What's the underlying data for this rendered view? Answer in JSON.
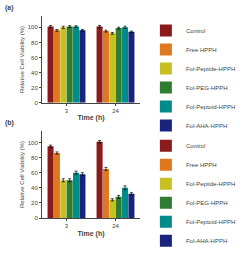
{
  "chart_data": [
    {
      "type": "bar",
      "title": "(a)",
      "categories": [
        "3",
        "24"
      ],
      "series": [
        {
          "name": "Control",
          "color": "#8B1A1A",
          "values": [
            101,
            101
          ],
          "errors": [
            1.5,
            1.5
          ]
        },
        {
          "name": "Free HPPH",
          "color": "#E07820",
          "values": [
            96,
            95
          ],
          "errors": [
            1.2,
            1.2
          ]
        },
        {
          "name": "Fol-Peptide-HPPH",
          "color": "#C8C020",
          "values": [
            100,
            92
          ],
          "errors": [
            1.5,
            1.2
          ]
        },
        {
          "name": "Fol-PEG-HPPH",
          "color": "#2E7D32",
          "values": [
            101,
            99
          ],
          "errors": [
            1.2,
            1.2
          ]
        },
        {
          "name": "Fol-Peptoid-HPPH",
          "color": "#008B8B",
          "values": [
            101,
            100
          ],
          "errors": [
            1.0,
            1.5
          ]
        },
        {
          "name": "Fol-AHA-HPPH",
          "color": "#1A237E",
          "values": [
            96,
            94
          ],
          "errors": [
            1.2,
            1.0
          ]
        }
      ],
      "xlabel": "Time (h)",
      "ylabel": "Relative Cell Viability (%)",
      "ylim": [
        0,
        115
      ],
      "yticks": [
        0,
        20,
        40,
        60,
        80,
        100
      ],
      "grid": false,
      "legend": "upper right"
    },
    {
      "type": "bar",
      "title": "(b)",
      "categories": [
        "3",
        "24"
      ],
      "series": [
        {
          "name": "Control",
          "color": "#8B1A1A",
          "values": [
            95,
            101
          ],
          "errors": [
            1.5,
            1.5
          ]
        },
        {
          "name": "Free HPPH",
          "color": "#E07820",
          "values": [
            86,
            65
          ],
          "errors": [
            1.5,
            2.0
          ]
        },
        {
          "name": "Fol-Peptide-HPPH",
          "color": "#C8C020",
          "values": [
            50,
            24
          ],
          "errors": [
            2.0,
            1.5
          ]
        },
        {
          "name": "Fol-PEG-HPPH",
          "color": "#2E7D32",
          "values": [
            50,
            28
          ],
          "errors": [
            2.0,
            2.0
          ]
        },
        {
          "name": "Fol-Peptoid-HPPH",
          "color": "#008B8B",
          "values": [
            60,
            40
          ],
          "errors": [
            2.0,
            2.5
          ]
        },
        {
          "name": "Fol-AHA-HPPH",
          "color": "#1A237E",
          "values": [
            58,
            32
          ],
          "errors": [
            2.0,
            1.5
          ]
        }
      ],
      "xlabel": "Time (h)",
      "ylabel": "Relative Cell Viability (%)",
      "ylim": [
        0,
        115
      ],
      "yticks": [
        0,
        20,
        40,
        60,
        80,
        100
      ],
      "grid": false,
      "legend": "upper right"
    }
  ]
}
